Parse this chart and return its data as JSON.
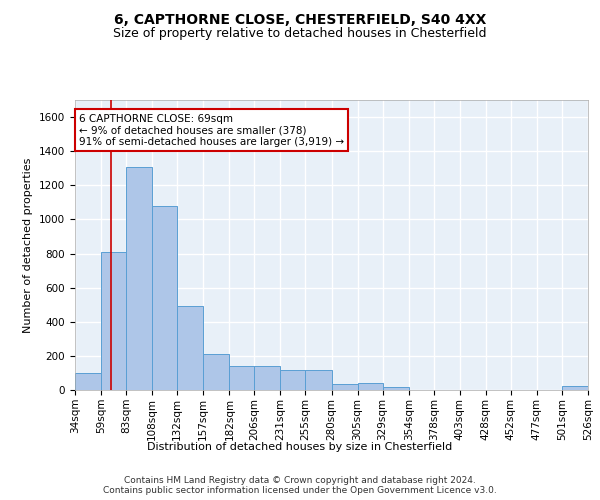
{
  "title_line1": "6, CAPTHORNE CLOSE, CHESTERFIELD, S40 4XX",
  "title_line2": "Size of property relative to detached houses in Chesterfield",
  "xlabel": "Distribution of detached houses by size in Chesterfield",
  "ylabel": "Number of detached properties",
  "footer_line1": "Contains HM Land Registry data © Crown copyright and database right 2024.",
  "footer_line2": "Contains public sector information licensed under the Open Government Licence v3.0.",
  "annotation_line1": "6 CAPTHORNE CLOSE: 69sqm",
  "annotation_line2": "← 9% of detached houses are smaller (378)",
  "annotation_line3": "91% of semi-detached houses are larger (3,919) →",
  "bar_color": "#aec6e8",
  "bar_edge_color": "#5a9fd4",
  "red_line_x": 69,
  "bin_edges": [
    34,
    59,
    83,
    108,
    132,
    157,
    182,
    206,
    231,
    255,
    280,
    305,
    329,
    354,
    378,
    403,
    428,
    452,
    477,
    501,
    526
  ],
  "bar_heights": [
    100,
    810,
    1310,
    1080,
    490,
    210,
    140,
    140,
    120,
    120,
    35,
    40,
    20,
    0,
    0,
    0,
    0,
    0,
    0,
    25
  ],
  "ylim": [
    0,
    1700
  ],
  "yticks": [
    0,
    200,
    400,
    600,
    800,
    1000,
    1200,
    1400,
    1600
  ],
  "background_color": "#e8f0f8",
  "grid_color": "#ffffff",
  "annotation_box_facecolor": "#ffffff",
  "annotation_box_edgecolor": "#cc0000",
  "title_fontsize": 10,
  "subtitle_fontsize": 9,
  "ylabel_fontsize": 8,
  "xlabel_fontsize": 8,
  "tick_fontsize": 7.5,
  "footer_fontsize": 6.5,
  "annotation_fontsize": 7.5
}
